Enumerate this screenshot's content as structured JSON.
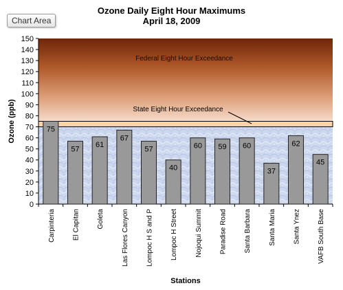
{
  "ui": {
    "chart_area_label": "Chart Area"
  },
  "colors": {
    "bar_fill": "#999999",
    "bar_stroke": "#222222",
    "federal_band_top": "#7a2f0d",
    "federal_band_bottom": "#f5d9c8",
    "state_band": "#fcd2a8",
    "plot_background": "#cad6ee"
  },
  "chart_data": {
    "type": "bar",
    "title": "Ozone Daily Eight Hour Maximums",
    "subtitle": "April 18, 2009",
    "xlabel": "Stations",
    "ylabel": "Ozone (ppb)",
    "ylim": [
      0,
      150
    ],
    "yticks": [
      0,
      10,
      20,
      30,
      40,
      50,
      60,
      70,
      80,
      90,
      100,
      110,
      120,
      130,
      140,
      150
    ],
    "grid": false,
    "categories": [
      "Carpinteria",
      "El Capitan",
      "Goleta",
      "Las Flores Canyon",
      "Lompoc H S and P",
      "Lompoc H Street",
      "Nojoqui Summit",
      "Paradise Road",
      "Santa Barbara",
      "Santa Maria",
      "Santa Ynez",
      "VAFB South Base"
    ],
    "values": [
      75,
      57,
      61,
      67,
      57,
      40,
      60,
      59,
      60,
      37,
      62,
      45
    ],
    "data_labels": [
      "75",
      "57",
      "61",
      "67",
      "57",
      "40",
      "60",
      "59",
      "60",
      "37",
      "62",
      "45"
    ],
    "bands": [
      {
        "label": "Federal Eight Hour Exceedance",
        "from": 75,
        "to": 150
      },
      {
        "label": "State Eight Hour Exceedance",
        "from": 70,
        "to": 75
      }
    ]
  }
}
